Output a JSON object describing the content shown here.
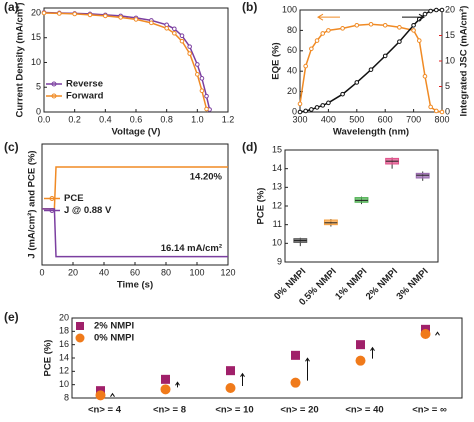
{
  "chart_data": [
    {
      "type": "line",
      "label": "(a)",
      "xlabel": "Voltage (V)",
      "ylabel": "Current Density (mA/cm²)",
      "x": [
        0,
        0.1,
        0.2,
        0.3,
        0.4,
        0.5,
        0.6,
        0.7,
        0.8,
        0.85,
        0.9,
        0.95,
        1.0,
        1.03,
        1.06,
        1.08
      ],
      "xlim": [
        0,
        1.2
      ],
      "xticks": [
        {
          "value": 0,
          "label": "0.0"
        },
        {
          "value": 0.2,
          "label": "0.2"
        },
        {
          "value": 0.4,
          "label": "0.4"
        },
        {
          "value": 0.6,
          "label": "0.6"
        },
        {
          "value": 0.8,
          "label": "0.8"
        },
        {
          "value": 1,
          "label": "1.0"
        },
        {
          "value": 1.2,
          "label": "1.2"
        }
      ],
      "ylim": [
        0,
        21
      ],
      "yticks": [
        0,
        5,
        10,
        15,
        20
      ],
      "legend": "lower left",
      "series": [
        {
          "name": "Reverse",
          "color": "#7b3fa0",
          "values": [
            20.1,
            20.0,
            19.9,
            19.8,
            19.6,
            19.4,
            19.0,
            18.5,
            17.6,
            16.8,
            15.4,
            13.2,
            9.6,
            6.8,
            3.2,
            0.5
          ]
        },
        {
          "name": "Forward",
          "color": "#f08a24",
          "values": [
            20.0,
            19.9,
            19.8,
            19.6,
            19.4,
            19.1,
            18.7,
            18.0,
            16.9,
            15.9,
            14.3,
            11.8,
            7.6,
            4.3,
            0.6,
            null
          ]
        }
      ]
    },
    {
      "type": "line",
      "label": "(b)",
      "xlabel": "Wavelength (nm)",
      "ylabel": "EQE (%)",
      "y2label": "Integrated JSC (mA/cm²)",
      "y2color": "#e02020",
      "x": [
        300,
        320,
        340,
        360,
        380,
        400,
        450,
        500,
        550,
        600,
        650,
        700,
        720,
        740,
        760,
        780,
        800
      ],
      "xlim": [
        300,
        800
      ],
      "xticks": [
        300,
        400,
        500,
        600,
        700,
        800
      ],
      "ylim": [
        0,
        100
      ],
      "yticks": [
        0,
        20,
        40,
        60,
        80,
        100
      ],
      "y2lim": [
        0,
        20
      ],
      "y2ticks": [
        0,
        5,
        10,
        15,
        20
      ],
      "series": [
        {
          "name": "EQE",
          "color": "#f08a24",
          "values": [
            8,
            45,
            62,
            70,
            77,
            80,
            82,
            85,
            86,
            85,
            83,
            80,
            70,
            35,
            5,
            1,
            0
          ]
        },
        {
          "name": "Integrated JSC",
          "color": "#111111",
          "axis": "y2",
          "values": [
            0,
            0.2,
            0.5,
            0.9,
            1.3,
            1.8,
            3.5,
            5.8,
            8.3,
            11,
            13.8,
            17,
            18.2,
            19.2,
            19.8,
            20,
            20
          ]
        }
      ]
    },
    {
      "type": "line",
      "label": "(c)",
      "xlabel": "Time (s)",
      "ylabel": "J (mA/cm²) and PCE (%)",
      "x": [
        0,
        4,
        8,
        9,
        20,
        40,
        60,
        80,
        100,
        120
      ],
      "xlim": [
        0,
        120
      ],
      "xticks": [
        0,
        20,
        40,
        60,
        80,
        100,
        120
      ],
      "ylim": [
        -19,
        22
      ],
      "legend": "center left",
      "annotations": [
        "14.20%",
        "16.14 mA/cm²"
      ],
      "series": [
        {
          "name": "PCE",
          "color": "#f08a24",
          "values": [
            0,
            0,
            0,
            14.2,
            14.2,
            14.2,
            14.2,
            14.2,
            14.2,
            14.2
          ]
        },
        {
          "name": "J @ 0.88 V",
          "color": "#7b3fa0",
          "values": [
            0,
            0,
            0,
            -16.14,
            -16.14,
            -16.14,
            -16.14,
            -16.14,
            -16.14,
            -16.14
          ]
        }
      ]
    },
    {
      "type": "box",
      "label": "(d)",
      "ylabel": "PCE (%)",
      "categories": [
        "0% NMPI",
        "0.5% NMPI",
        "1% NMPI",
        "2% NMPI",
        "3% NMPI"
      ],
      "colors": [
        "#555555",
        "#f5a040",
        "#4cb050",
        "#e0508a",
        "#9a6ab0"
      ],
      "ylim": [
        9,
        15
      ],
      "yticks": [
        9,
        10,
        11,
        12,
        13,
        14,
        15
      ],
      "boxes": [
        {
          "min": 9.85,
          "q1": 10.05,
          "median": 10.15,
          "q3": 10.25,
          "max": 10.3
        },
        {
          "min": 10.9,
          "q1": 11.0,
          "median": 11.1,
          "q3": 11.25,
          "max": 11.3
        },
        {
          "min": 12.1,
          "q1": 12.2,
          "median": 12.3,
          "q3": 12.45,
          "max": 12.5
        },
        {
          "min": 14.0,
          "q1": 14.25,
          "median": 14.4,
          "q3": 14.55,
          "max": 14.6
        },
        {
          "min": 13.35,
          "q1": 13.5,
          "median": 13.65,
          "q3": 13.75,
          "max": 13.85
        }
      ]
    },
    {
      "type": "scatter",
      "label": "(e)",
      "ylabel": "PCE (%)",
      "categories": [
        "<n> = 4",
        "<n> = 8",
        "<n> = 10",
        "<n> = 20",
        "<n> = 40",
        "<n> = ∞"
      ],
      "ylim": [
        8,
        20
      ],
      "yticks": [
        8,
        10,
        12,
        14,
        16,
        18,
        20
      ],
      "legend": "upper left",
      "series": [
        {
          "name": "2% NMPI",
          "color": "#a0206a",
          "marker": "square",
          "values": [
            9.1,
            10.8,
            12.1,
            14.4,
            16.0,
            18.3
          ]
        },
        {
          "name": "0% NMPI",
          "color": "#f07a1a",
          "marker": "circle",
          "values": [
            8.4,
            9.3,
            9.5,
            10.3,
            13.6,
            17.6
          ]
        }
      ]
    }
  ]
}
